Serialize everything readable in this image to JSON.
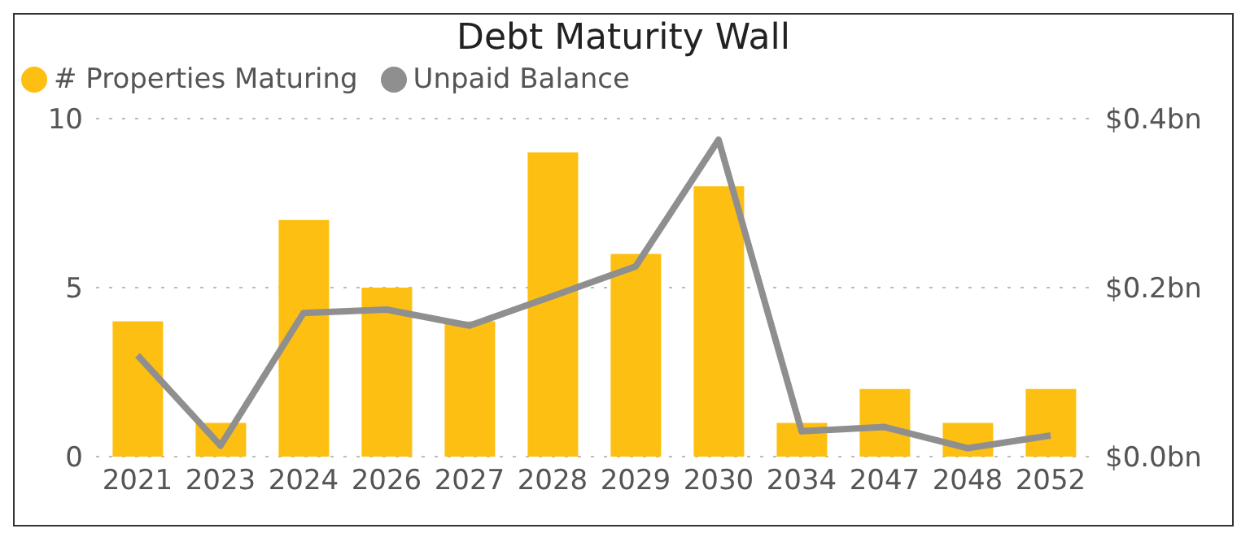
{
  "chart_data": {
    "type": "bar",
    "title": "Debt Maturity Wall",
    "categories": [
      "2021",
      "2023",
      "2024",
      "2026",
      "2027",
      "2028",
      "2029",
      "2030",
      "2034",
      "2047",
      "2048",
      "2052"
    ],
    "series": [
      {
        "name": "# Properties Maturing",
        "color": "#fdbf11",
        "values": [
          4,
          1,
          7,
          5,
          4,
          9,
          6,
          8,
          1,
          2,
          1,
          2
        ]
      },
      {
        "name": "Unpaid Balance",
        "type": "line",
        "axis": "y2",
        "color": "#8f8f8f",
        "values": [
          0.12,
          0.013,
          0.17,
          0.174,
          0.155,
          0.19,
          0.225,
          0.375,
          0.03,
          0.035,
          0.01,
          0.025
        ]
      }
    ],
    "ylim": [
      0,
      10
    ],
    "yticks": [
      0,
      5,
      10
    ],
    "y2lim": [
      0,
      0.4
    ],
    "y2ticks": [
      {
        "value": 0,
        "label": "$0.0bn"
      },
      {
        "value": 0.2,
        "label": "$0.2bn"
      },
      {
        "value": 0.4,
        "label": "$0.4bn"
      }
    ],
    "grid": "y",
    "legend": "top left",
    "marker": "none",
    "line_style": "solid"
  }
}
